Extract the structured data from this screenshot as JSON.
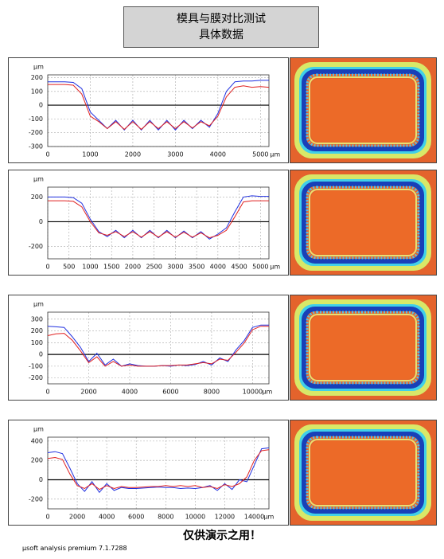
{
  "header": {
    "title": "模具与膜对比测试",
    "subtitle": "具体数据"
  },
  "chart_data": [
    {
      "type": "line",
      "y_unit": "µm",
      "x_unit": "µm",
      "grid": true,
      "x": [
        0,
        200,
        400,
        600,
        800,
        1000,
        1200,
        1400,
        1600,
        1800,
        2000,
        2200,
        2400,
        2600,
        2800,
        3000,
        3200,
        3400,
        3600,
        3800,
        4000,
        4200,
        4400,
        4600,
        4800,
        5000,
        5200
      ],
      "series": [
        {
          "name": "blue",
          "color": "#1f2fe0",
          "values": [
            170,
            170,
            170,
            165,
            120,
            -50,
            -110,
            -170,
            -110,
            -180,
            -110,
            -180,
            -110,
            -180,
            -110,
            -180,
            -110,
            -170,
            -110,
            -160,
            -60,
            100,
            170,
            175,
            175,
            180,
            180
          ]
        },
        {
          "name": "red",
          "color": "#e02020",
          "values": [
            150,
            150,
            150,
            145,
            80,
            -80,
            -120,
            -170,
            -120,
            -175,
            -120,
            -175,
            -120,
            -170,
            -120,
            -170,
            -120,
            -165,
            -120,
            -150,
            -80,
            60,
            130,
            140,
            130,
            135,
            130
          ]
        }
      ],
      "xlim": [
        0,
        5200
      ],
      "xticks": [
        0,
        1000,
        2000,
        3000,
        4000,
        5000
      ],
      "ylim": [
        -300,
        220
      ],
      "yticks": [
        200,
        100,
        0,
        -100,
        -200,
        -300
      ]
    },
    {
      "type": "line",
      "y_unit": "µm",
      "x_unit": "µm",
      "grid": true,
      "x": [
        0,
        200,
        400,
        600,
        800,
        1000,
        1200,
        1400,
        1600,
        1800,
        2000,
        2200,
        2400,
        2600,
        2800,
        3000,
        3200,
        3400,
        3600,
        3800,
        4000,
        4200,
        4400,
        4600,
        4800,
        5000,
        5200
      ],
      "series": [
        {
          "name": "blue",
          "color": "#1f2fe0",
          "values": [
            200,
            200,
            200,
            195,
            150,
            20,
            -80,
            -120,
            -70,
            -130,
            -70,
            -130,
            -70,
            -130,
            -70,
            -130,
            -75,
            -130,
            -80,
            -140,
            -100,
            -50,
            80,
            200,
            210,
            205,
            205
          ]
        },
        {
          "name": "red",
          "color": "#e02020",
          "values": [
            170,
            170,
            170,
            165,
            120,
            0,
            -90,
            -110,
            -80,
            -120,
            -80,
            -125,
            -80,
            -125,
            -80,
            -125,
            -85,
            -125,
            -90,
            -130,
            -110,
            -70,
            40,
            160,
            170,
            170,
            170
          ]
        }
      ],
      "xlim": [
        0,
        5200
      ],
      "xticks": [
        0,
        500,
        1000,
        1500,
        2000,
        2500,
        3000,
        3500,
        4000,
        4500,
        5000
      ],
      "ylim": [
        -300,
        280
      ],
      "yticks": [
        200,
        0,
        -200
      ]
    },
    {
      "type": "line",
      "y_unit": "µm",
      "x_unit": "µm",
      "grid": true,
      "x": [
        0,
        400,
        800,
        1200,
        1600,
        2000,
        2400,
        2800,
        3200,
        3600,
        4000,
        4400,
        4800,
        5200,
        5600,
        6000,
        6400,
        6800,
        7200,
        7600,
        8000,
        8400,
        8800,
        9200,
        9600,
        10000,
        10400,
        10800
      ],
      "series": [
        {
          "name": "blue",
          "color": "#1f2fe0",
          "values": [
            240,
            235,
            230,
            150,
            60,
            -60,
            10,
            -90,
            -40,
            -100,
            -80,
            -95,
            -100,
            -100,
            -95,
            -100,
            -90,
            -95,
            -85,
            -60,
            -90,
            -30,
            -60,
            40,
            120,
            230,
            250,
            250
          ]
        },
        {
          "name": "red",
          "color": "#e02020",
          "values": [
            160,
            175,
            180,
            120,
            30,
            -70,
            -20,
            -100,
            -60,
            -100,
            -90,
            -100,
            -100,
            -100,
            -95,
            -95,
            -90,
            -90,
            -80,
            -70,
            -80,
            -40,
            -50,
            20,
            100,
            210,
            240,
            240
          ]
        }
      ],
      "xlim": [
        0,
        10800
      ],
      "xticks": [
        0,
        2000,
        4000,
        6000,
        8000,
        10000
      ],
      "ylim": [
        -250,
        360
      ],
      "yticks": [
        300,
        200,
        100,
        0,
        -100,
        -200
      ]
    },
    {
      "type": "line",
      "y_unit": "µm",
      "x_unit": "µm",
      "grid": true,
      "x": [
        0,
        500,
        1000,
        1500,
        2000,
        2500,
        3000,
        3500,
        4000,
        4500,
        5000,
        5500,
        6000,
        6500,
        7000,
        7500,
        8000,
        8500,
        9000,
        9500,
        10000,
        10500,
        11000,
        11500,
        12000,
        12500,
        13000,
        13500,
        14000,
        14500,
        15000
      ],
      "series": [
        {
          "name": "blue",
          "color": "#1f2fe0",
          "values": [
            280,
            290,
            270,
            120,
            -40,
            -120,
            -20,
            -130,
            -40,
            -110,
            -80,
            -90,
            -90,
            -85,
            -80,
            -75,
            -80,
            -80,
            -90,
            -85,
            -90,
            -80,
            -60,
            -110,
            -40,
            -100,
            0,
            -20,
            150,
            320,
            330
          ]
        },
        {
          "name": "red",
          "color": "#e02020",
          "values": [
            220,
            230,
            210,
            60,
            -60,
            -90,
            -40,
            -100,
            -60,
            -90,
            -70,
            -80,
            -80,
            -75,
            -70,
            -70,
            -60,
            -70,
            -60,
            -70,
            -60,
            -80,
            -70,
            -90,
            -50,
            -70,
            -40,
            30,
            200,
            300,
            310
          ]
        }
      ],
      "xlim": [
        0,
        15000
      ],
      "xticks": [
        0,
        2000,
        4000,
        6000,
        8000,
        10000,
        12000,
        14000
      ],
      "ylim": [
        -300,
        440
      ],
      "yticks": [
        400,
        200,
        0,
        -200
      ]
    }
  ],
  "footer": {
    "watermark": "仅供演示之用！",
    "version": "µsoft analysis premium 7.1.7288"
  }
}
